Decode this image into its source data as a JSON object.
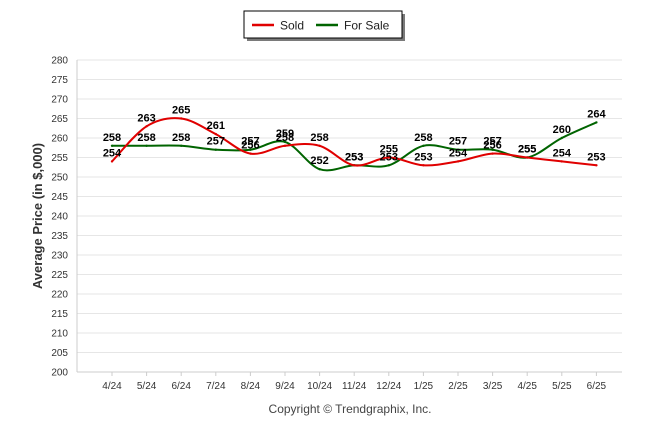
{
  "chart_data": {
    "type": "line",
    "ylabel": "Average Price (in $,000)",
    "credit": "Copyright © Trendgraphix, Inc.",
    "categories": [
      "4/24",
      "5/24",
      "6/24",
      "7/24",
      "8/24",
      "9/24",
      "10/24",
      "11/24",
      "12/24",
      "1/25",
      "2/25",
      "3/25",
      "4/25",
      "5/25",
      "6/25"
    ],
    "ylim": [
      200,
      280
    ],
    "ytick_step": 5,
    "grid": true,
    "legend_position": "top-center",
    "series": [
      {
        "name": "Sold",
        "color": "#e00000",
        "values": [
          254,
          263,
          265,
          261,
          256,
          258,
          258,
          253,
          255,
          253,
          254,
          256,
          255,
          254,
          253
        ]
      },
      {
        "name": "For Sale",
        "color": "#006400",
        "values": [
          258,
          258,
          258,
          257,
          257,
          259,
          252,
          253,
          253,
          258,
          257,
          257,
          255,
          260,
          264
        ]
      }
    ]
  }
}
